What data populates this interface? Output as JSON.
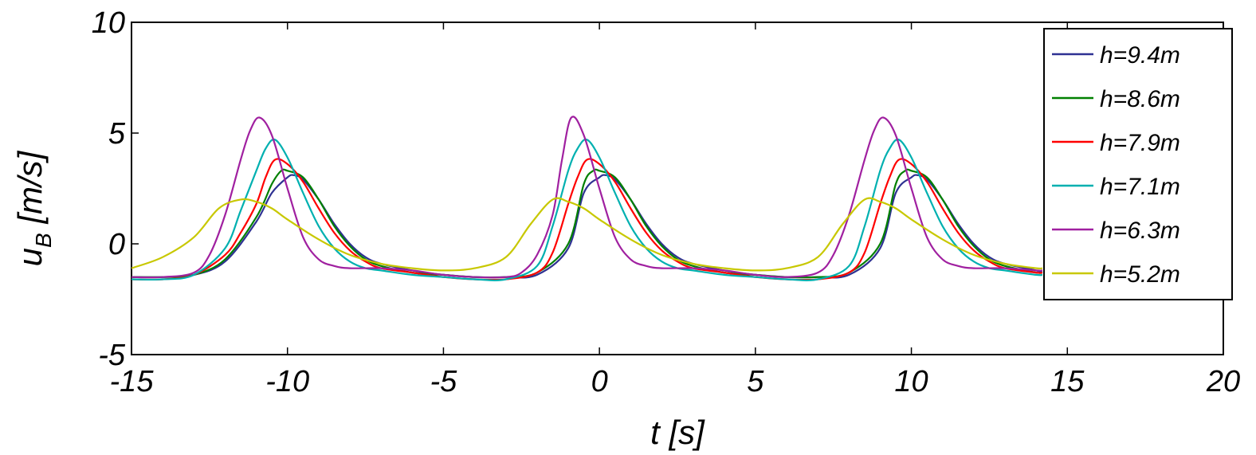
{
  "chart_data": {
    "type": "line",
    "title": "",
    "xlabel": "t [s]",
    "ylabel_main": "u",
    "ylabel_sub": "B",
    "ylabel_unit": " [m/s]",
    "xlim": [
      -15,
      20
    ],
    "ylim": [
      -5,
      10
    ],
    "xticks": [
      -15,
      -10,
      -5,
      0,
      5,
      10,
      15,
      20
    ],
    "yticks": [
      -5,
      0,
      5,
      10
    ],
    "xtick_labels": [
      "-15",
      "-10",
      "-5",
      "0",
      "5",
      "10",
      "15",
      "20"
    ],
    "ytick_labels": [
      "-5",
      "0",
      "5",
      "10"
    ],
    "grid": false,
    "legend_position": "top-right",
    "series": [
      {
        "name": "h=9.4m",
        "color": "#2e3192",
        "x": [
          -15,
          -14,
          -13,
          -12,
          -11,
          -10.5,
          -10,
          -9.8,
          -9.5,
          -9,
          -8.5,
          -8,
          -7.5,
          -7,
          -6,
          -5,
          -4,
          -3,
          -2,
          -1,
          -0.5,
          0,
          0.2,
          0.5,
          1,
          1.5,
          2,
          2.5,
          3,
          4,
          5,
          6,
          7,
          8,
          9,
          9.5,
          10,
          10.2,
          10.5,
          11,
          11.5,
          12,
          12.5,
          13,
          14,
          14.2
        ],
        "y": [
          -1.5,
          -1.5,
          -1.4,
          -0.8,
          1.0,
          2.3,
          3.0,
          3.1,
          2.9,
          2.0,
          0.9,
          0.0,
          -0.6,
          -0.9,
          -1.2,
          -1.4,
          -1.5,
          -1.5,
          -1.4,
          -0.2,
          2.3,
          3.0,
          3.1,
          2.9,
          2.0,
          0.9,
          0.0,
          -0.6,
          -0.9,
          -1.2,
          -1.4,
          -1.5,
          -1.5,
          -1.4,
          -0.2,
          2.3,
          3.0,
          3.1,
          2.9,
          2.0,
          0.9,
          0.0,
          -0.6,
          -0.9,
          -1.2,
          -1.3
        ]
      },
      {
        "name": "h=8.6m",
        "color": "#008000",
        "x": [
          -15,
          -14,
          -13,
          -12,
          -11,
          -10.5,
          -10.2,
          -10,
          -9.5,
          -9,
          -8.5,
          -8,
          -7.5,
          -7,
          -6,
          -5,
          -4,
          -3,
          -2,
          -1,
          -0.5,
          -0.2,
          0,
          0.5,
          1,
          1.5,
          2,
          2.5,
          3,
          4,
          5,
          6,
          7,
          8,
          9,
          9.5,
          9.8,
          10,
          10.5,
          11,
          11.5,
          12,
          12.5,
          13,
          14,
          14.2
        ],
        "y": [
          -1.5,
          -1.5,
          -1.4,
          -0.7,
          1.2,
          2.7,
          3.3,
          3.3,
          3.0,
          2.0,
          0.8,
          -0.1,
          -0.7,
          -1.0,
          -1.3,
          -1.4,
          -1.5,
          -1.5,
          -1.3,
          0.0,
          2.7,
          3.3,
          3.3,
          3.0,
          2.0,
          0.8,
          -0.1,
          -0.7,
          -1.0,
          -1.3,
          -1.4,
          -1.5,
          -1.5,
          -1.3,
          0.0,
          2.7,
          3.3,
          3.3,
          3.0,
          2.0,
          0.8,
          -0.1,
          -0.7,
          -1.0,
          -1.3,
          -1.3
        ]
      },
      {
        "name": "h=7.9m",
        "color": "#ff0000",
        "x": [
          -15,
          -14,
          -13,
          -12,
          -11.5,
          -11,
          -10.7,
          -10.4,
          -10,
          -9.5,
          -9,
          -8.5,
          -8,
          -7.5,
          -7,
          -6,
          -5,
          -4,
          -3,
          -2,
          -1.5,
          -1,
          -0.7,
          -0.4,
          0,
          0.5,
          1,
          1.5,
          2,
          2.5,
          3,
          4,
          5,
          6,
          7,
          8,
          8.5,
          9,
          9.3,
          9.6,
          10,
          10.5,
          11,
          11.5,
          12,
          12.5,
          13,
          14,
          14.2
        ],
        "y": [
          -1.6,
          -1.6,
          -1.4,
          -0.5,
          0.5,
          1.8,
          3.0,
          3.8,
          3.6,
          2.8,
          1.6,
          0.5,
          -0.3,
          -0.8,
          -1.1,
          -1.3,
          -1.5,
          -1.6,
          -1.6,
          -1.3,
          -0.4,
          1.8,
          3.0,
          3.8,
          3.6,
          2.8,
          1.6,
          0.5,
          -0.3,
          -0.8,
          -1.1,
          -1.3,
          -1.5,
          -1.6,
          -1.6,
          -1.3,
          -0.4,
          1.8,
          3.0,
          3.8,
          3.6,
          2.8,
          1.6,
          0.5,
          -0.3,
          -0.8,
          -1.1,
          -1.3,
          -1.3
        ]
      },
      {
        "name": "h=7.1m",
        "color": "#00b0b0",
        "x": [
          -15,
          -14,
          -13,
          -12,
          -11.5,
          -11,
          -10.7,
          -10.4,
          -10,
          -9.5,
          -9,
          -8.5,
          -8,
          -7.5,
          -7,
          -6,
          -5,
          -4,
          -3,
          -2,
          -1.5,
          -1,
          -0.7,
          -0.4,
          0,
          0.5,
          1,
          1.5,
          2,
          2.5,
          3,
          4,
          5,
          6,
          7,
          8,
          8.5,
          9,
          9.3,
          9.6,
          10,
          10.5,
          11,
          11.5,
          12,
          12.5,
          13,
          14,
          14.2
        ],
        "y": [
          -1.6,
          -1.6,
          -1.4,
          -0.2,
          1.5,
          3.3,
          4.3,
          4.7,
          3.9,
          2.3,
          0.8,
          -0.2,
          -0.8,
          -1.1,
          -1.2,
          -1.4,
          -1.5,
          -1.6,
          -1.6,
          -1.0,
          0.8,
          3.3,
          4.3,
          4.7,
          3.9,
          2.3,
          0.8,
          -0.2,
          -0.8,
          -1.1,
          -1.2,
          -1.4,
          -1.5,
          -1.6,
          -1.6,
          -1.0,
          0.8,
          3.3,
          4.3,
          4.7,
          3.9,
          2.3,
          0.8,
          -0.2,
          -0.8,
          -1.1,
          -1.2,
          -1.4,
          -1.4
        ]
      },
      {
        "name": "h=6.3m",
        "color": "#a020a0",
        "x": [
          -15,
          -14,
          -13,
          -12.5,
          -12,
          -11.5,
          -11.2,
          -10.9,
          -10.5,
          -10,
          -9.5,
          -9,
          -8.5,
          -8,
          -7,
          -6,
          -5,
          -4,
          -3,
          -2.5,
          -2,
          -1.5,
          -1.2,
          -0.9,
          -0.5,
          0,
          0.5,
          1,
          1.5,
          2,
          3,
          4,
          5,
          6,
          7,
          7.5,
          8,
          8.5,
          8.8,
          9.1,
          9.5,
          10,
          10.5,
          11,
          11.5,
          12,
          13,
          14,
          14.2
        ],
        "y": [
          -1.5,
          -1.5,
          -1.3,
          -0.5,
          1.3,
          3.8,
          5.1,
          5.7,
          4.9,
          2.5,
          0.3,
          -0.7,
          -1.0,
          -1.1,
          -1.1,
          -1.2,
          -1.4,
          -1.5,
          -1.5,
          -1.3,
          -0.5,
          1.3,
          3.8,
          5.7,
          4.9,
          2.5,
          0.3,
          -0.7,
          -1.0,
          -1.1,
          -1.1,
          -1.2,
          -1.4,
          -1.5,
          -1.3,
          -0.5,
          1.3,
          3.8,
          5.1,
          5.7,
          4.9,
          2.5,
          0.3,
          -0.7,
          -1.0,
          -1.1,
          -1.1,
          -1.2,
          -1.2
        ]
      },
      {
        "name": "h=5.2m",
        "color": "#c8c800",
        "x": [
          -15,
          -14,
          -13,
          -12.2,
          -11.5,
          -11,
          -10.5,
          -10,
          -9,
          -8,
          -7,
          -6,
          -5,
          -4,
          -3,
          -2.2,
          -1.5,
          -1,
          -0.5,
          0,
          1,
          2,
          3,
          4,
          5,
          6,
          7,
          7.8,
          8.5,
          9,
          9.5,
          10,
          11,
          12,
          13,
          14,
          14.2
        ],
        "y": [
          -1.1,
          -0.6,
          0.3,
          1.6,
          2.0,
          1.9,
          1.6,
          1.1,
          0.2,
          -0.5,
          -0.9,
          -1.1,
          -1.2,
          -1.1,
          -0.6,
          0.9,
          2.0,
          1.9,
          1.6,
          1.1,
          0.2,
          -0.5,
          -0.9,
          -1.1,
          -1.2,
          -1.1,
          -0.6,
          0.9,
          2.0,
          1.9,
          1.6,
          1.1,
          0.2,
          -0.5,
          -0.9,
          -1.1,
          -1.1
        ]
      }
    ]
  }
}
